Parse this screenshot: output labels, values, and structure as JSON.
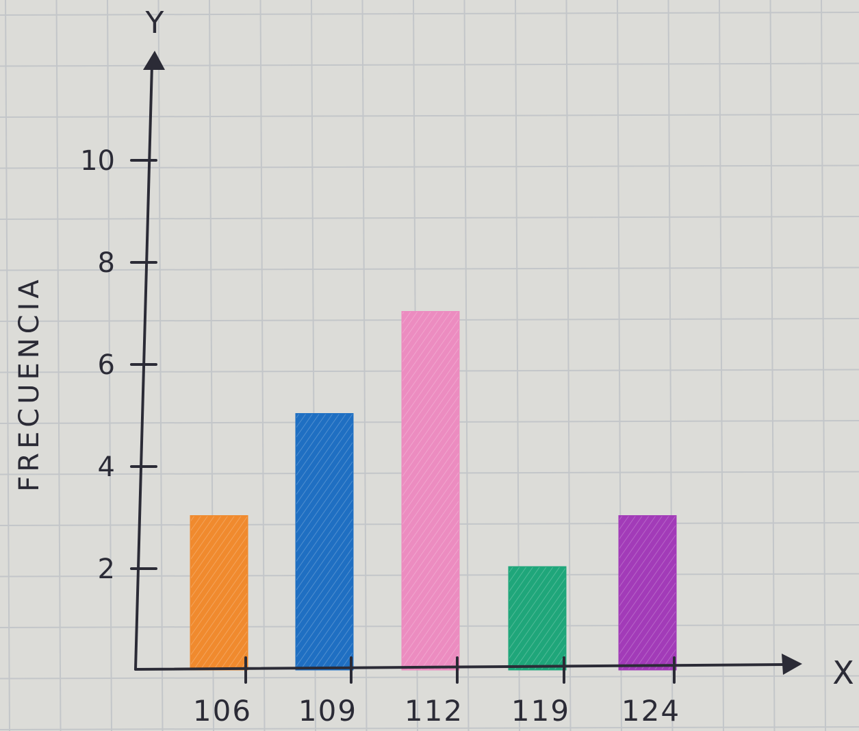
{
  "chart_data": {
    "type": "bar",
    "title": "",
    "xlabel": "X",
    "ylabel": "FRECUENCIA",
    "y_axis_letter": "Y",
    "categories": [
      "106",
      "109",
      "112",
      "119",
      "124"
    ],
    "values": [
      3,
      5,
      7,
      2,
      3
    ],
    "colors": [
      "#f08a2e",
      "#1f6fc2",
      "#ec8cc0",
      "#1fa67a",
      "#a23bb8"
    ],
    "yticks": [
      "2",
      "4",
      "6",
      "8",
      "10"
    ],
    "ylim": [
      0,
      12
    ],
    "grid": true,
    "legend": "none"
  },
  "colors": {
    "paper": "#dcdcd8",
    "grid": "#c3c6c9",
    "ink": "#2b2b36"
  }
}
